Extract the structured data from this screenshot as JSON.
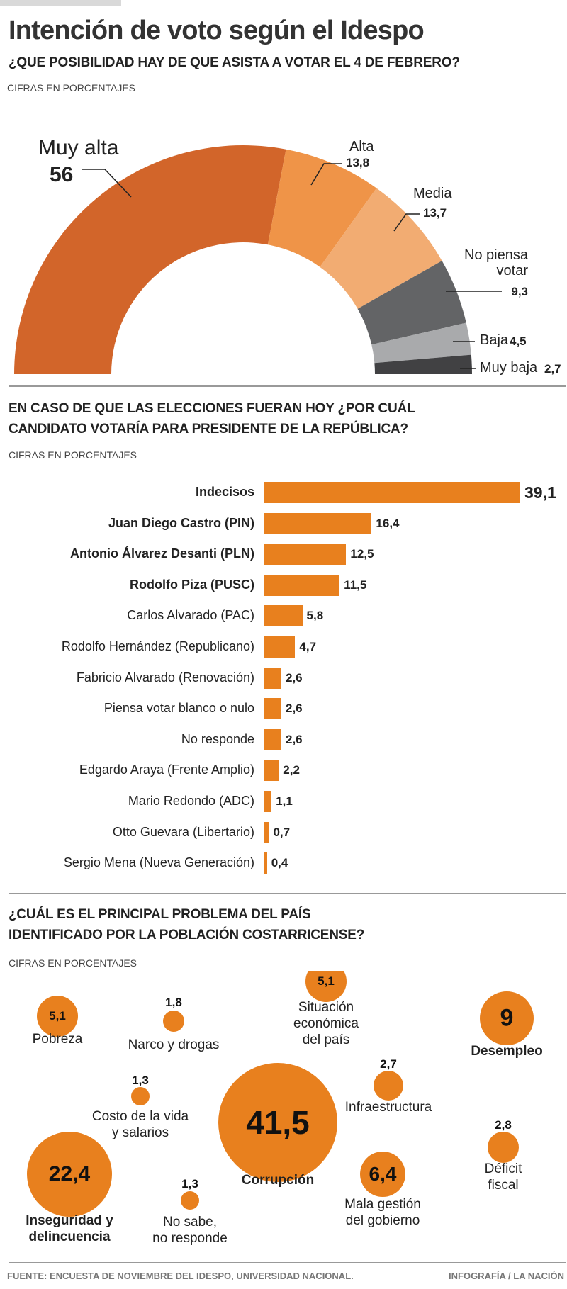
{
  "header": {
    "title": "Intención de voto según el Idespo"
  },
  "chart_data": [
    {
      "type": "pie",
      "subtype": "semi-donut",
      "title": "¿QUE POSIBILIDAD HAY DE QUE ASISTA A VOTAR EL 4 DE FEBRERO?",
      "subtitle": "CIFRAS EN PORCENTAJES",
      "categories": [
        "Muy alta",
        "Alta",
        "Media",
        "No piensa votar",
        "Baja",
        "Muy baja"
      ],
      "values": [
        56,
        13.8,
        13.7,
        9.3,
        4.5,
        2.7
      ],
      "value_labels": [
        "56",
        "13,8",
        "13,7",
        "9,3",
        "4,5",
        "2,7"
      ],
      "label_lines": [
        [
          "Muy alta"
        ],
        [
          "Alta"
        ],
        [
          "Media"
        ],
        [
          "No piensa",
          "votar"
        ],
        [
          "Baja"
        ],
        [
          "Muy baja"
        ]
      ],
      "colors": [
        "#d2652a",
        "#ef9448",
        "#f2ac72",
        "#636466",
        "#a9aaac",
        "#414143"
      ]
    },
    {
      "type": "bar",
      "orientation": "horizontal",
      "title_lines": [
        "EN CASO DE QUE LAS ELECCIONES FUERAN HOY ¿POR CUÁL",
        "CANDIDATO VOTARÍA PARA PRESIDENTE DE LA REPÚBLICA?"
      ],
      "subtitle": "CIFRAS EN PORCENTAJES",
      "categories": [
        "Indecisos",
        "Juan Diego Castro (PIN)",
        "Antonio Álvarez Desanti (PLN)",
        "Rodolfo Piza (PUSC)",
        "Carlos Alvarado (PAC)",
        "Rodolfo Hernández (Republicano)",
        "Fabricio Alvarado (Renovación)",
        "Piensa votar blanco o nulo",
        "No responde",
        "Edgardo Araya (Frente Amplio)",
        "Mario Redondo (ADC)",
        "Otto Guevara (Libertario)",
        "Sergio Mena (Nueva Generación)"
      ],
      "values": [
        39.1,
        16.4,
        12.5,
        11.5,
        5.8,
        4.7,
        2.6,
        2.6,
        2.6,
        2.2,
        1.1,
        0.7,
        0.4
      ],
      "value_labels": [
        "39,1",
        "16,4",
        "12,5",
        "11,5",
        "5,8",
        "4,7",
        "2,6",
        "2,6",
        "2,6",
        "2,2",
        "1,1",
        "0,7",
        "0,4"
      ],
      "bold_count": 4,
      "color": "#e8801e",
      "xlim": [
        0,
        39.1
      ]
    },
    {
      "type": "scatter",
      "subtype": "bubble",
      "title_lines": [
        "¿CUÁL ES EL PRINCIPAL PROBLEMA DEL PAÍS",
        "IDENTIFICADO POR LA POBLACIÓN COSTARRICENSE?"
      ],
      "subtitle": "CIFRAS EN PORCENTAJES",
      "color": "#e8801e",
      "items": [
        {
          "label": "Pobreza",
          "value": 5.1,
          "value_label": "5,1",
          "bold": false
        },
        {
          "label": "Narco y drogas",
          "value": 1.8,
          "value_label": "1,8",
          "bold": false
        },
        {
          "label": "Situación\neconómica\ndel país",
          "value": 5.1,
          "value_label": "5,1",
          "bold": false
        },
        {
          "label": "Desempleo",
          "value": 9,
          "value_label": "9",
          "bold": true
        },
        {
          "label": "Infraestructura",
          "value": 2.7,
          "value_label": "2,7",
          "bold": false
        },
        {
          "label": "Costo de la vida\ny salarios",
          "value": 1.3,
          "value_label": "1,3",
          "bold": false
        },
        {
          "label": "Corrupción",
          "value": 41.5,
          "value_label": "41,5",
          "bold": true
        },
        {
          "label": "Déficit fiscal",
          "value": 2.8,
          "value_label": "2,8",
          "bold": false
        },
        {
          "label": "Inseguridad y\ndelincuencia",
          "value": 22.4,
          "value_label": "22,4",
          "bold": true
        },
        {
          "label": "No sabe,\nno responde",
          "value": 1.3,
          "value_label": "1,3",
          "bold": false
        },
        {
          "label": "Mala gestión\ndel gobierno",
          "value": 6.4,
          "value_label": "6,4",
          "bold": false
        }
      ]
    }
  ],
  "footer": {
    "source": "FUENTE: ENCUESTA DE NOVIEMBRE DEL IDESPO, UNIVERSIDAD NACIONAL.",
    "credit": "INFOGRAFÍA / LA NACIÓN"
  }
}
